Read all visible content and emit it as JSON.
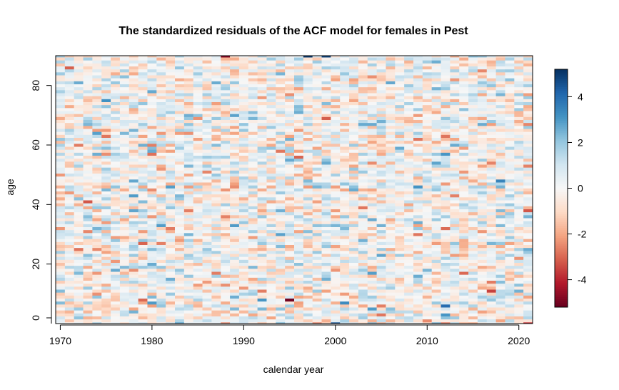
{
  "chart_data": {
    "type": "heatmap",
    "title": "The standardized residuals of the ACF model for females in Pest",
    "xlabel": "calendar year",
    "ylabel": "age",
    "x_range": [
      1970,
      2021
    ],
    "y_range": [
      0,
      90
    ],
    "xlim": [
      1969.5,
      2021.5
    ],
    "ylim": [
      0,
      90
    ],
    "x_ticks": [
      1970,
      1980,
      1990,
      2000,
      2010,
      2020
    ],
    "y_ticks": [
      0,
      20,
      40,
      60,
      80
    ],
    "colorbar": {
      "range": [
        -5.2,
        5.2
      ],
      "ticks": [
        -4,
        -2,
        0,
        2,
        4
      ],
      "tick_labels": [
        "-4",
        "-2",
        "0",
        "2",
        "4"
      ],
      "colors": [
        "#67001f",
        "#b2182b",
        "#d6604d",
        "#f4a582",
        "#fddbc7",
        "#f7f7f7",
        "#d1e5f0",
        "#92c5de",
        "#4393c3",
        "#2166ac",
        "#053061"
      ]
    },
    "noted_cells": [
      {
        "year": 1988,
        "age": 90,
        "value": -4.8
      },
      {
        "year": 1997,
        "age": 90,
        "value": 5.0
      },
      {
        "year": 1999,
        "age": 90,
        "value": 4.8
      },
      {
        "year": 2000,
        "age": 0,
        "value": 4.5
      },
      {
        "year": 2021,
        "age": 0,
        "value": -3.8
      },
      {
        "year": 2021,
        "age": 25,
        "value": 2.6
      },
      {
        "year": 1988,
        "age": 0,
        "value": -2.5
      },
      {
        "year": 1994,
        "age": 0,
        "value": 2.4
      }
    ],
    "grid": false,
    "legend": "colorbar-right"
  }
}
